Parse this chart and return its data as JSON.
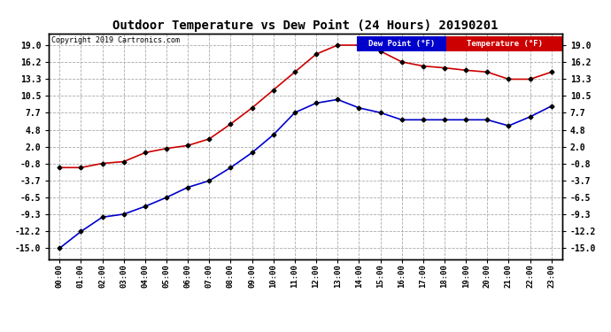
{
  "title": "Outdoor Temperature vs Dew Point (24 Hours) 20190201",
  "copyright": "Copyright 2019 Cartronics.com",
  "hours": [
    "00:00",
    "01:00",
    "02:00",
    "03:00",
    "04:00",
    "05:00",
    "06:00",
    "07:00",
    "08:00",
    "09:00",
    "10:00",
    "11:00",
    "12:00",
    "13:00",
    "14:00",
    "15:00",
    "16:00",
    "17:00",
    "18:00",
    "19:00",
    "20:00",
    "21:00",
    "22:00",
    "23:00"
  ],
  "temperature": [
    -1.5,
    -1.5,
    -0.8,
    -0.5,
    1.0,
    1.7,
    2.2,
    3.3,
    5.8,
    8.5,
    11.5,
    14.5,
    17.5,
    19.0,
    19.0,
    18.0,
    16.2,
    15.5,
    15.2,
    14.8,
    14.5,
    13.3,
    13.3,
    14.5
  ],
  "dew_point": [
    -15.0,
    -12.2,
    -9.8,
    -9.3,
    -8.0,
    -6.5,
    -4.8,
    -3.7,
    -1.5,
    1.0,
    4.0,
    7.7,
    9.3,
    9.9,
    8.5,
    7.7,
    6.5,
    6.5,
    6.5,
    6.5,
    6.5,
    5.5,
    7.0,
    8.8
  ],
  "temp_color": "#cc0000",
  "dew_color": "#0000cc",
  "marker_color": "#000000",
  "yticks": [
    -15.0,
    -12.2,
    -9.3,
    -6.5,
    -3.7,
    -0.8,
    2.0,
    4.8,
    7.7,
    10.5,
    13.3,
    16.2,
    19.0
  ],
  "ylim": [
    -16.8,
    21.0
  ],
  "bg_color": "#ffffff",
  "grid_color": "#aaaaaa",
  "legend_dew_bg": "#0000cc",
  "legend_temp_bg": "#cc0000",
  "legend_text_color": "#ffffff",
  "figwidth": 6.9,
  "figheight": 3.75,
  "dpi": 100
}
